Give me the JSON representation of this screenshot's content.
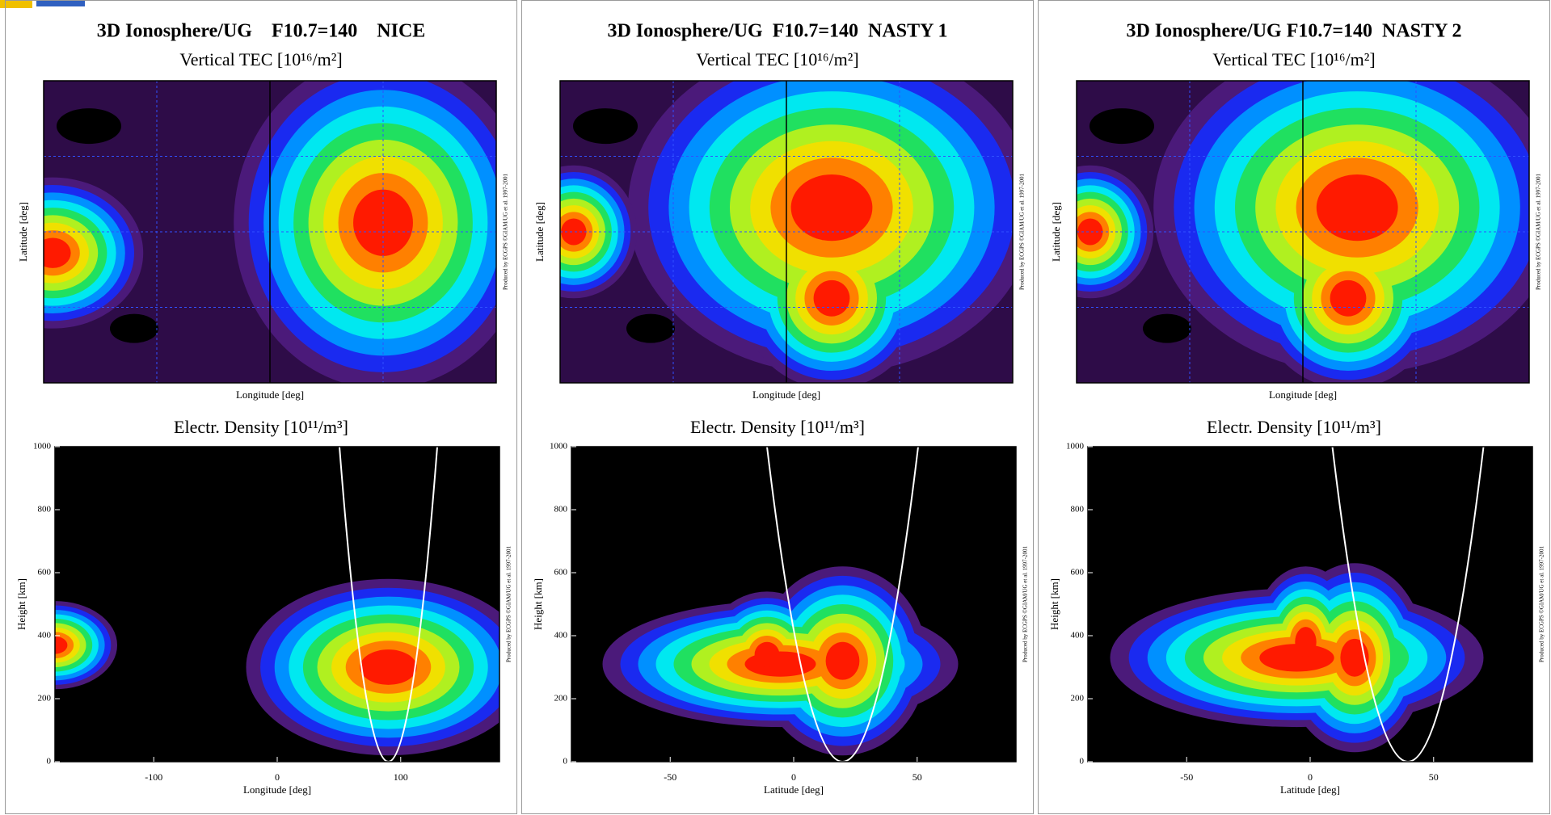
{
  "panels": [
    {
      "title": "3D Ionosphere/UG    F10.7=140    NICE",
      "tec": {
        "subtitle": "Vertical TEC [10¹⁶/m²]",
        "ylabel": "Latitude [deg]",
        "xlabel": "Longitude [deg]",
        "credit": "Produced by ECGPS ©GIAM/UG et al. 1997-2001"
      },
      "density": {
        "type": "contour",
        "title": "Electr. Density [10¹¹/m³]",
        "ylabel": "Height [km]",
        "xlabel": "Longitude [deg]",
        "xlim": [
          -180,
          180
        ],
        "xticks": [
          -100,
          0,
          100
        ],
        "ylim": [
          0,
          1000
        ],
        "yticks": [
          0,
          200,
          400,
          600,
          800,
          1000
        ],
        "credit": "Produced by ECGPS ©GIAM/UG et al. 1997-2001"
      }
    },
    {
      "title": "3D Ionosphere/UG  F10.7=140  NASTY 1",
      "tec": {
        "subtitle": "Vertical TEC [10¹⁶/m²]",
        "ylabel": "Latitude [deg]",
        "xlabel": "Longitude [deg]",
        "credit": "Produced by ECGPS ©GIAM/UG et al. 1997-2001"
      },
      "density": {
        "type": "contour",
        "title": "Electr. Density [10¹¹/m³]",
        "ylabel": "Height [km]",
        "xlabel": "Latitude [deg]",
        "xlim": [
          -90,
          90
        ],
        "xticks": [
          -50,
          0,
          50
        ],
        "ylim": [
          0,
          1000
        ],
        "yticks": [
          0,
          200,
          400,
          600,
          800,
          1000
        ],
        "credit": "Produced by ECGPS ©GIAM/UG et al. 1997-2001"
      }
    },
    {
      "title": "3D Ionosphere/UG F10.7=140  NASTY 2",
      "tec": {
        "subtitle": "Vertical TEC [10¹⁶/m²]",
        "ylabel": "Latitude [deg]",
        "xlabel": "Longitude [deg]",
        "credit": "Produced by ECGPS ©GIAM/UG et al. 1997-2001"
      },
      "density": {
        "type": "contour",
        "title": "Electr. Density [10¹¹/m³]",
        "ylabel": "Height [km]",
        "xlabel": "Latitude [deg]",
        "xlim": [
          -90,
          90
        ],
        "xticks": [
          -50,
          0,
          50
        ],
        "ylim": [
          0,
          1000
        ],
        "yticks": [
          0,
          200,
          400,
          600,
          800,
          1000
        ],
        "credit": "Produced by ECGPS ©GIAM/UG et al. 1997-2001"
      }
    }
  ]
}
